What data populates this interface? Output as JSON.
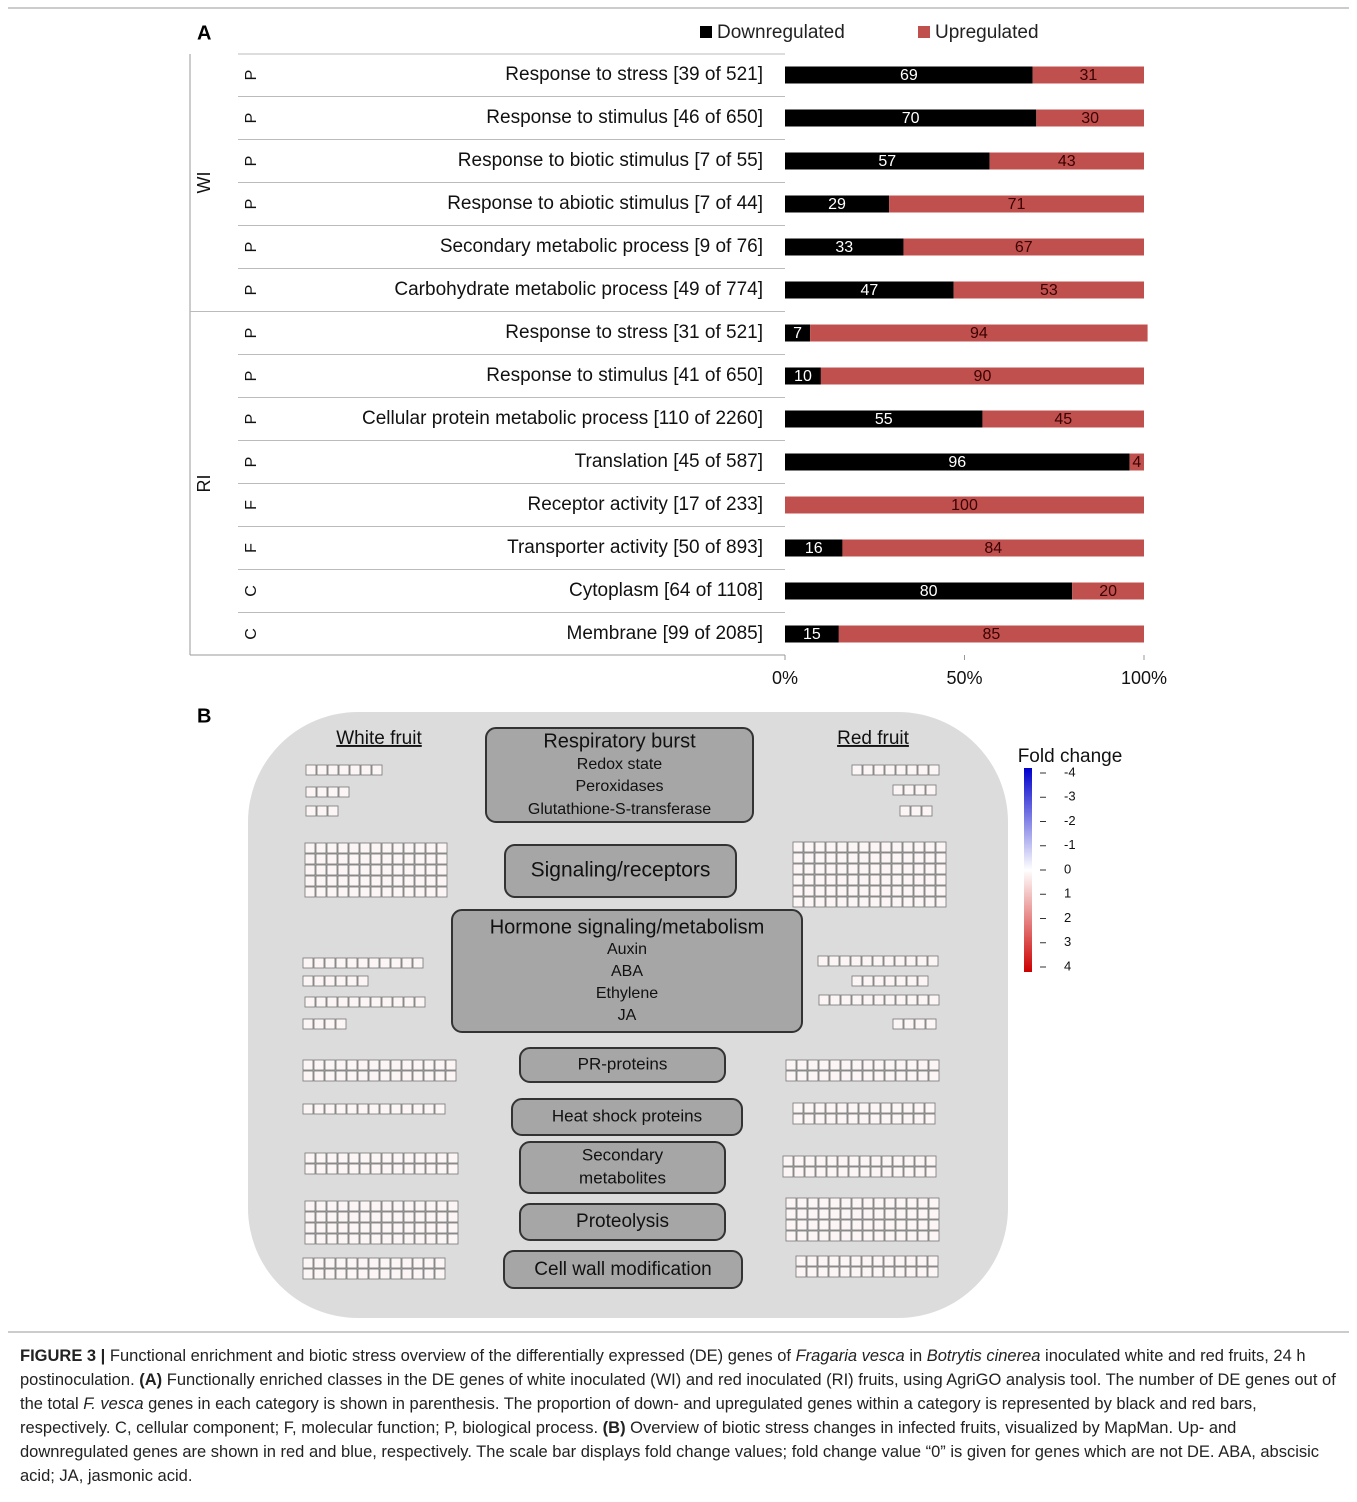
{
  "panel_labels": [
    "A",
    "B"
  ],
  "chart_data": {
    "type": "bar",
    "stacked": true,
    "orientation": "horizontal",
    "categories": [
      "Response to stress [39 of 521]",
      "Response to stimulus [46 of 650]",
      "Response to biotic stimulus [7 of 55]",
      "Response to abiotic stimulus [7 of 44]",
      "Secondary metabolic process [9 of 76]",
      "Carbohydrate metabolic process [49 of 774]",
      "Response to stress [31 of 521]",
      "Response to stimulus [41 of 650]",
      "Cellular protein metabolic process [110 of 2260]",
      "Translation  [45 of 587]",
      "Receptor activity [17 of 233]",
      "Transporter activity [50 of 893]",
      "Cytoplasm [64 of 1108]",
      "Membrane [99 of 2085]"
    ],
    "ontology": [
      "P",
      "P",
      "P",
      "P",
      "P",
      "P",
      "P",
      "P",
      "P",
      "P",
      "F",
      "F",
      "C",
      "C"
    ],
    "groups": [
      "WI",
      "WI",
      "WI",
      "WI",
      "WI",
      "WI",
      "RI",
      "RI",
      "RI",
      "RI",
      "RI",
      "RI",
      "RI",
      "RI"
    ],
    "series": [
      {
        "name": "Downregulated",
        "color": "#000000",
        "values": [
          69,
          70,
          57,
          29,
          33,
          47,
          7,
          10,
          55,
          96,
          0,
          16,
          80,
          15
        ]
      },
      {
        "name": "Upregulated",
        "color": "#c0504d",
        "values": [
          31,
          30,
          43,
          71,
          67,
          53,
          94,
          90,
          45,
          4,
          100,
          84,
          20,
          85
        ]
      }
    ],
    "xlim": [
      0,
      100
    ],
    "xticks": [
      {
        "value": 0,
        "label": "0%"
      },
      {
        "value": 50,
        "label": "50%"
      },
      {
        "value": 100,
        "label": "100%"
      }
    ],
    "legend": "top-right"
  },
  "diagram": {
    "left_title": "White fruit",
    "right_title": "Red fruit",
    "boxes": [
      [
        "Respiratory burst",
        "Redox state",
        "Peroxidases",
        "Glutathione-S-transferase"
      ],
      [
        "Signaling/receptors"
      ],
      [
        "Hormone signaling/metabolism",
        "Auxin",
        "ABA",
        "Ethylene",
        "JA"
      ],
      [
        "PR-proteins"
      ],
      [
        "Heat shock proteins"
      ],
      [
        "Secondary",
        "metabolites"
      ],
      [
        "Proteolysis"
      ],
      [
        "Cell wall modification"
      ]
    ],
    "legend": {
      "title": "Fold change",
      "ticks": [
        -4,
        -3,
        -2,
        -1,
        0,
        1,
        2,
        3,
        4
      ]
    }
  },
  "caption": [
    "FIGURE 3 |",
    " Functional enrichment and biotic stress overview of the differentially expressed (DE) genes of ",
    "Fragaria vesca",
    " in ",
    "Botrytis cinerea",
    " inoculated white and red fruits, 24 h postinoculation. ",
    "(A)",
    " Functionally enriched classes in the DE genes of white inoculated (WI) and red inoculated (RI) fruits, using AgriGO analysis tool. The number of DE genes out of the total ",
    "F. vesca",
    " genes in each category is shown in parenthesis. The proportion of down- and upregulated genes within a category is represented by black and red bars, respectively. C, cellular component; F, molecular function; P, biological process. ",
    "(B)",
    " Overview of biotic stress changes in infected fruits, visualized by MapMan. Up- and downregulated genes are shown in red and blue, respectively. The scale bar displays fold change values; fold change value “0” is given for genes which are not DE. ABA, abscisic acid; JA, jasmonic acid."
  ]
}
